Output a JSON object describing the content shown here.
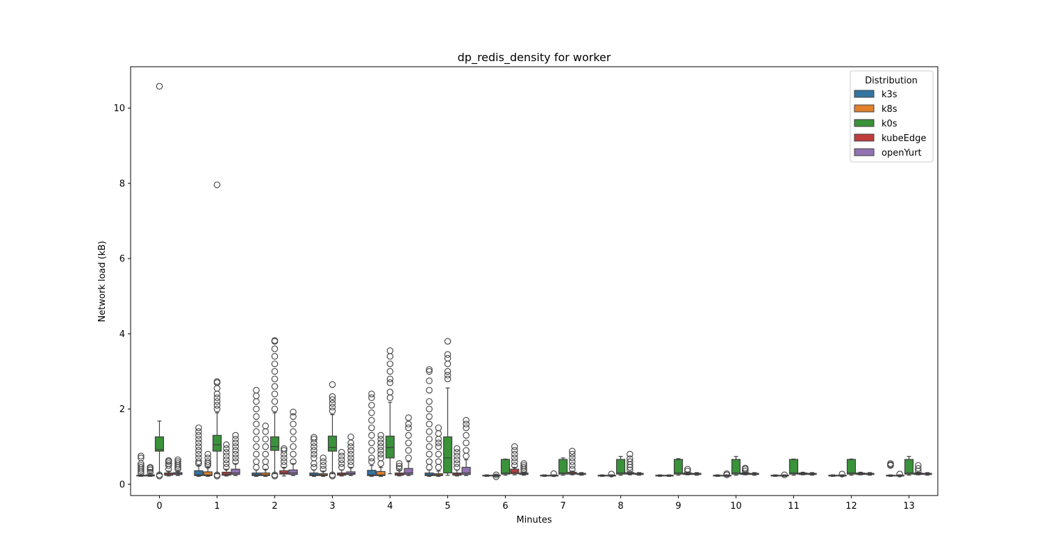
{
  "chart_data": {
    "type": "box",
    "title": "dp_redis_density for worker",
    "xlabel": "Minutes",
    "ylabel": "Network load (kB)",
    "categories": [
      "0",
      "1",
      "2",
      "3",
      "4",
      "5",
      "6",
      "7",
      "8",
      "9",
      "10",
      "11",
      "12",
      "13"
    ],
    "ylim": [
      -0.3,
      11.1
    ],
    "yticks": [
      0,
      2,
      4,
      6,
      8,
      10
    ],
    "legend": {
      "title": "Distribution",
      "position": "top-right"
    },
    "series": [
      {
        "name": "k3s",
        "color": "#3274a1",
        "boxes": [
          {
            "q1": 0.22,
            "med": 0.23,
            "q3": 0.24,
            "wlo": 0.21,
            "whi": 0.25,
            "out": [
              0.3,
              0.35,
              0.4,
              0.45,
              0.5,
              0.55,
              0.7,
              0.75
            ]
          },
          {
            "q1": 0.23,
            "med": 0.25,
            "q3": 0.36,
            "wlo": 0.21,
            "whi": 0.5,
            "out": [
              0.55,
              0.6,
              0.7,
              0.8,
              0.9,
              1.0,
              1.1,
              1.2,
              1.3,
              1.4,
              1.5
            ]
          },
          {
            "q1": 0.23,
            "med": 0.25,
            "q3": 0.3,
            "wlo": 0.21,
            "whi": 0.38,
            "out": [
              0.45,
              0.6,
              0.8,
              1.0,
              1.2,
              1.4,
              1.6,
              1.8,
              2.0,
              2.2,
              2.35,
              2.5
            ]
          },
          {
            "q1": 0.23,
            "med": 0.25,
            "q3": 0.3,
            "wlo": 0.21,
            "whi": 0.38,
            "out": [
              0.45,
              0.55,
              0.7,
              0.8,
              0.9,
              1.0,
              1.1,
              1.2,
              1.25
            ]
          },
          {
            "q1": 0.23,
            "med": 0.25,
            "q3": 0.37,
            "wlo": 0.21,
            "whi": 0.5,
            "out": [
              0.6,
              0.7,
              0.9,
              1.1,
              1.3,
              1.5,
              1.7,
              1.9,
              2.1,
              2.3,
              2.4
            ]
          },
          {
            "q1": 0.23,
            "med": 0.25,
            "q3": 0.3,
            "wlo": 0.21,
            "whi": 0.38,
            "out": [
              0.45,
              0.6,
              0.8,
              1.0,
              1.2,
              1.4,
              1.6,
              1.8,
              2.0,
              2.2,
              2.5,
              2.75,
              3.0,
              3.05
            ]
          },
          {
            "q1": 0.22,
            "med": 0.23,
            "q3": 0.24,
            "wlo": 0.21,
            "whi": 0.25,
            "out": []
          },
          {
            "q1": 0.22,
            "med": 0.23,
            "q3": 0.24,
            "wlo": 0.21,
            "whi": 0.25,
            "out": []
          },
          {
            "q1": 0.22,
            "med": 0.23,
            "q3": 0.24,
            "wlo": 0.21,
            "whi": 0.25,
            "out": []
          },
          {
            "q1": 0.22,
            "med": 0.23,
            "q3": 0.24,
            "wlo": 0.21,
            "whi": 0.25,
            "out": []
          },
          {
            "q1": 0.22,
            "med": 0.23,
            "q3": 0.24,
            "wlo": 0.21,
            "whi": 0.25,
            "out": []
          },
          {
            "q1": 0.22,
            "med": 0.23,
            "q3": 0.24,
            "wlo": 0.21,
            "whi": 0.25,
            "out": []
          },
          {
            "q1": 0.22,
            "med": 0.23,
            "q3": 0.24,
            "wlo": 0.21,
            "whi": 0.25,
            "out": []
          },
          {
            "q1": 0.22,
            "med": 0.23,
            "q3": 0.24,
            "wlo": 0.21,
            "whi": 0.25,
            "out": [
              0.5,
              0.52,
              0.55
            ]
          }
        ]
      },
      {
        "name": "k8s",
        "color": "#e1812c",
        "boxes": [
          {
            "q1": 0.22,
            "med": 0.23,
            "q3": 0.25,
            "wlo": 0.21,
            "whi": 0.28,
            "out": [
              0.32,
              0.38,
              0.42,
              0.45
            ]
          },
          {
            "q1": 0.23,
            "med": 0.25,
            "q3": 0.33,
            "wlo": 0.21,
            "whi": 0.45,
            "out": [
              0.5,
              0.55,
              0.6,
              0.7,
              0.8
            ]
          },
          {
            "q1": 0.23,
            "med": 0.25,
            "q3": 0.3,
            "wlo": 0.21,
            "whi": 0.4,
            "out": [
              0.45,
              0.6,
              0.8,
              1.0,
              1.2,
              1.4,
              1.55
            ]
          },
          {
            "q1": 0.23,
            "med": 0.25,
            "q3": 0.28,
            "wlo": 0.21,
            "whi": 0.35,
            "out": [
              0.4,
              0.5,
              0.6,
              0.7
            ]
          },
          {
            "q1": 0.23,
            "med": 0.25,
            "q3": 0.34,
            "wlo": 0.21,
            "whi": 0.45,
            "out": [
              0.55,
              0.7,
              0.8,
              0.9,
              1.0,
              1.1,
              1.2,
              1.3
            ]
          },
          {
            "q1": 0.23,
            "med": 0.25,
            "q3": 0.28,
            "wlo": 0.21,
            "whi": 0.35,
            "out": [
              0.45,
              0.6,
              0.8,
              1.0,
              1.1,
              1.2,
              1.35,
              1.5
            ]
          },
          {
            "q1": 0.22,
            "med": 0.23,
            "q3": 0.24,
            "wlo": 0.21,
            "whi": 0.25,
            "out": [
              0.2,
              0.25
            ]
          },
          {
            "q1": 0.22,
            "med": 0.23,
            "q3": 0.24,
            "wlo": 0.21,
            "whi": 0.25,
            "out": [
              0.28
            ]
          },
          {
            "q1": 0.22,
            "med": 0.23,
            "q3": 0.24,
            "wlo": 0.21,
            "whi": 0.25,
            "out": [
              0.27
            ]
          },
          {
            "q1": 0.22,
            "med": 0.23,
            "q3": 0.24,
            "wlo": 0.21,
            "whi": 0.25,
            "out": []
          },
          {
            "q1": 0.22,
            "med": 0.23,
            "q3": 0.24,
            "wlo": 0.21,
            "whi": 0.25,
            "out": [
              0.25,
              0.28
            ]
          },
          {
            "q1": 0.22,
            "med": 0.23,
            "q3": 0.24,
            "wlo": 0.21,
            "whi": 0.25,
            "out": [
              0.25
            ]
          },
          {
            "q1": 0.22,
            "med": 0.23,
            "q3": 0.24,
            "wlo": 0.21,
            "whi": 0.25,
            "out": [
              0.27
            ]
          },
          {
            "q1": 0.22,
            "med": 0.23,
            "q3": 0.24,
            "wlo": 0.21,
            "whi": 0.25,
            "out": [
              0.27
            ]
          }
        ]
      },
      {
        "name": "k0s",
        "color": "#3a923a",
        "boxes": [
          {
            "q1": 0.88,
            "med": 0.92,
            "q3": 1.26,
            "wlo": 0.28,
            "whi": 1.68,
            "out": [
              0.22,
              0.25,
              10.58
            ]
          },
          {
            "q1": 0.88,
            "med": 1.05,
            "q3": 1.3,
            "wlo": 0.28,
            "whi": 1.9,
            "out": [
              0.22,
              0.25,
              7.96,
              2.0,
              2.1,
              2.2,
              2.3,
              2.4,
              2.55,
              2.7,
              2.73
            ]
          },
          {
            "q1": 0.9,
            "med": 1.0,
            "q3": 1.26,
            "wlo": 0.28,
            "whi": 1.9,
            "out": [
              0.22,
              0.25,
              2.0,
              2.2,
              2.4,
              2.6,
              2.8,
              3.0,
              3.2,
              3.4,
              3.6,
              3.8,
              3.82
            ]
          },
          {
            "q1": 0.88,
            "med": 0.98,
            "q3": 1.28,
            "wlo": 0.28,
            "whi": 1.85,
            "out": [
              0.22,
              0.25,
              1.95,
              2.05,
              2.15,
              2.25,
              2.33,
              2.65
            ]
          },
          {
            "q1": 0.7,
            "med": 0.98,
            "q3": 1.28,
            "wlo": 0.28,
            "whi": 2.18,
            "out": [
              2.3,
              2.45,
              2.7,
              2.8,
              3.0,
              3.2,
              3.4,
              3.55
            ]
          },
          {
            "q1": 0.3,
            "med": 0.7,
            "q3": 1.26,
            "wlo": 0.24,
            "whi": 2.56,
            "out": [
              2.8,
              2.9,
              3.0,
              3.2,
              3.35,
              3.45,
              3.8
            ]
          },
          {
            "q1": 0.27,
            "med": 0.3,
            "q3": 0.66,
            "wlo": 0.24,
            "whi": 0.67,
            "out": []
          },
          {
            "q1": 0.27,
            "med": 0.3,
            "q3": 0.66,
            "wlo": 0.24,
            "whi": 0.7,
            "out": []
          },
          {
            "q1": 0.27,
            "med": 0.3,
            "q3": 0.66,
            "wlo": 0.24,
            "whi": 0.74,
            "out": []
          },
          {
            "q1": 0.27,
            "med": 0.3,
            "q3": 0.66,
            "wlo": 0.24,
            "whi": 0.68,
            "out": []
          },
          {
            "q1": 0.27,
            "med": 0.3,
            "q3": 0.66,
            "wlo": 0.24,
            "whi": 0.74,
            "out": []
          },
          {
            "q1": 0.27,
            "med": 0.3,
            "q3": 0.66,
            "wlo": 0.24,
            "whi": 0.67,
            "out": []
          },
          {
            "q1": 0.27,
            "med": 0.3,
            "q3": 0.66,
            "wlo": 0.24,
            "whi": 0.67,
            "out": []
          },
          {
            "q1": 0.27,
            "med": 0.3,
            "q3": 0.66,
            "wlo": 0.24,
            "whi": 0.74,
            "out": []
          }
        ]
      },
      {
        "name": "kubeEdge",
        "color": "#c03d3e",
        "boxes": [
          {
            "q1": 0.24,
            "med": 0.27,
            "q3": 0.3,
            "wlo": 0.22,
            "whi": 0.35,
            "out": [
              0.4,
              0.5,
              0.55,
              0.6,
              0.63
            ]
          },
          {
            "q1": 0.24,
            "med": 0.27,
            "q3": 0.32,
            "wlo": 0.22,
            "whi": 0.4,
            "out": [
              0.45,
              0.55,
              0.65,
              0.75,
              0.85,
              0.95,
              1.05
            ]
          },
          {
            "q1": 0.27,
            "med": 0.3,
            "q3": 0.36,
            "wlo": 0.22,
            "whi": 0.45,
            "out": [
              0.5,
              0.6,
              0.7,
              0.8,
              0.9,
              0.95
            ]
          },
          {
            "q1": 0.24,
            "med": 0.27,
            "q3": 0.3,
            "wlo": 0.22,
            "whi": 0.38,
            "out": [
              0.45,
              0.55,
              0.65,
              0.75,
              0.85
            ]
          },
          {
            "q1": 0.24,
            "med": 0.27,
            "q3": 0.3,
            "wlo": 0.22,
            "whi": 0.38,
            "out": [
              0.42,
              0.48,
              0.55
            ]
          },
          {
            "q1": 0.24,
            "med": 0.27,
            "q3": 0.3,
            "wlo": 0.22,
            "whi": 0.38,
            "out": [
              0.45,
              0.55,
              0.65,
              0.75,
              0.85,
              0.95
            ]
          },
          {
            "q1": 0.28,
            "med": 0.32,
            "q3": 0.4,
            "wlo": 0.25,
            "whi": 0.45,
            "out": [
              0.5,
              0.6,
              0.7,
              0.8,
              0.9,
              1.0
            ]
          },
          {
            "q1": 0.27,
            "med": 0.29,
            "q3": 0.32,
            "wlo": 0.25,
            "whi": 0.35,
            "out": [
              0.4,
              0.5,
              0.6,
              0.7,
              0.8,
              0.88
            ]
          },
          {
            "q1": 0.27,
            "med": 0.29,
            "q3": 0.31,
            "wlo": 0.25,
            "whi": 0.34,
            "out": [
              0.38,
              0.45,
              0.52,
              0.6,
              0.68,
              0.8
            ]
          },
          {
            "q1": 0.26,
            "med": 0.28,
            "q3": 0.3,
            "wlo": 0.25,
            "whi": 0.32,
            "out": [
              0.35,
              0.4
            ]
          },
          {
            "q1": 0.26,
            "med": 0.28,
            "q3": 0.3,
            "wlo": 0.25,
            "whi": 0.32,
            "out": [
              0.35,
              0.4,
              0.43
            ]
          },
          {
            "q1": 0.26,
            "med": 0.28,
            "q3": 0.3,
            "wlo": 0.25,
            "whi": 0.32,
            "out": []
          },
          {
            "q1": 0.26,
            "med": 0.28,
            "q3": 0.3,
            "wlo": 0.25,
            "whi": 0.32,
            "out": []
          },
          {
            "q1": 0.26,
            "med": 0.28,
            "q3": 0.3,
            "wlo": 0.25,
            "whi": 0.32,
            "out": [
              0.35,
              0.42,
              0.5
            ]
          }
        ]
      },
      {
        "name": "openYurt",
        "color": "#9372b2",
        "boxes": [
          {
            "q1": 0.26,
            "med": 0.28,
            "q3": 0.31,
            "wlo": 0.23,
            "whi": 0.35,
            "out": [
              0.4,
              0.45,
              0.5,
              0.55,
              0.6,
              0.65
            ]
          },
          {
            "q1": 0.26,
            "med": 0.3,
            "q3": 0.4,
            "wlo": 0.23,
            "whi": 0.55,
            "out": [
              0.6,
              0.7,
              0.8,
              0.9,
              1.0,
              1.1,
              1.2,
              1.3
            ]
          },
          {
            "q1": 0.26,
            "med": 0.3,
            "q3": 0.38,
            "wlo": 0.23,
            "whi": 0.55,
            "out": [
              0.6,
              0.8,
              1.0,
              1.2,
              1.4,
              1.6,
              1.8,
              1.92
            ]
          },
          {
            "q1": 0.26,
            "med": 0.28,
            "q3": 0.33,
            "wlo": 0.23,
            "whi": 0.45,
            "out": [
              0.5,
              0.6,
              0.7,
              0.8,
              0.9,
              1.0,
              1.1,
              1.26
            ]
          },
          {
            "q1": 0.26,
            "med": 0.3,
            "q3": 0.42,
            "wlo": 0.23,
            "whi": 0.6,
            "out": [
              0.7,
              0.9,
              1.1,
              1.3,
              1.5,
              1.6,
              1.77
            ]
          },
          {
            "q1": 0.26,
            "med": 0.3,
            "q3": 0.45,
            "wlo": 0.23,
            "whi": 0.65,
            "out": [
              0.75,
              0.9,
              1.1,
              1.3,
              1.5,
              1.6,
              1.7
            ]
          },
          {
            "q1": 0.26,
            "med": 0.27,
            "q3": 0.3,
            "wlo": 0.24,
            "whi": 0.32,
            "out": [
              0.35,
              0.4,
              0.45,
              0.5,
              0.55
            ]
          },
          {
            "q1": 0.26,
            "med": 0.27,
            "q3": 0.29,
            "wlo": 0.24,
            "whi": 0.31,
            "out": []
          },
          {
            "q1": 0.26,
            "med": 0.27,
            "q3": 0.29,
            "wlo": 0.24,
            "whi": 0.31,
            "out": []
          },
          {
            "q1": 0.26,
            "med": 0.27,
            "q3": 0.29,
            "wlo": 0.24,
            "whi": 0.31,
            "out": []
          },
          {
            "q1": 0.26,
            "med": 0.27,
            "q3": 0.29,
            "wlo": 0.24,
            "whi": 0.31,
            "out": []
          },
          {
            "q1": 0.26,
            "med": 0.27,
            "q3": 0.29,
            "wlo": 0.24,
            "whi": 0.31,
            "out": []
          },
          {
            "q1": 0.26,
            "med": 0.27,
            "q3": 0.29,
            "wlo": 0.24,
            "whi": 0.31,
            "out": []
          },
          {
            "q1": 0.26,
            "med": 0.27,
            "q3": 0.29,
            "wlo": 0.24,
            "whi": 0.31,
            "out": []
          }
        ]
      }
    ]
  }
}
